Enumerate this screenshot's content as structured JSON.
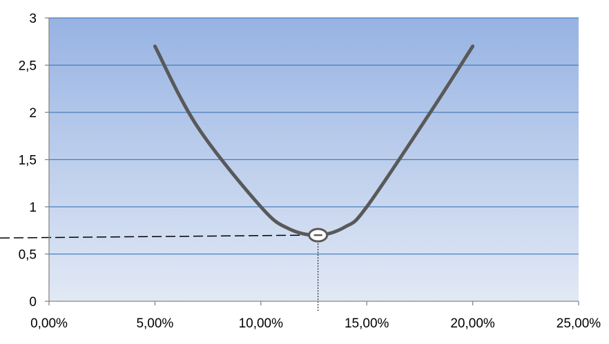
{
  "chart_data": {
    "type": "line",
    "title": "",
    "xlabel": "",
    "ylabel": "",
    "xlim": [
      0,
      0.25
    ],
    "ylim": [
      0,
      3
    ],
    "x_ticks": [
      {
        "value": 0.0,
        "label": "0,00%"
      },
      {
        "value": 0.05,
        "label": "5,00%"
      },
      {
        "value": 0.1,
        "label": "10,00%"
      },
      {
        "value": 0.15,
        "label": "15,00%"
      },
      {
        "value": 0.2,
        "label": "20,00%"
      },
      {
        "value": 0.25,
        "label": "25,00%"
      }
    ],
    "y_ticks": [
      {
        "value": 0,
        "label": "0"
      },
      {
        "value": 0.5,
        "label": "0,5"
      },
      {
        "value": 1,
        "label": "1"
      },
      {
        "value": 1.5,
        "label": "1,5"
      },
      {
        "value": 2,
        "label": "2"
      },
      {
        "value": 2.5,
        "label": "2,5"
      },
      {
        "value": 3,
        "label": "3"
      }
    ],
    "grid": "horizontal",
    "series": [
      {
        "x": [
          0.05,
          0.07,
          0.1,
          0.113,
          0.127,
          0.14,
          0.15,
          0.18,
          0.2
        ],
        "y": [
          2.7,
          1.85,
          1.0,
          0.77,
          0.7,
          0.79,
          1.0,
          2.0,
          2.7
        ],
        "color": "#595959"
      }
    ],
    "marked_point": {
      "x": 0.127,
      "y": 0.7
    },
    "reference_lines": {
      "horizontal_y": 0.67,
      "vertical_x": 0.127
    },
    "colors": {
      "plot_top": "#97b3e3",
      "plot_bottom": "#e2e9f5",
      "gridline": "#4a7ebb",
      "curve": "#595959",
      "axis": "#868686"
    }
  }
}
